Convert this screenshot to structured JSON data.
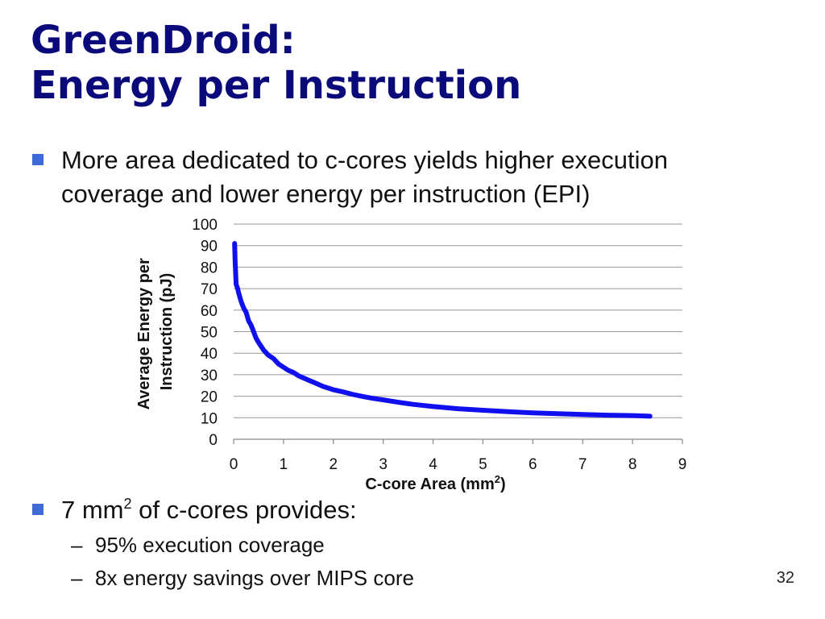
{
  "slide": {
    "title_line1": "GreenDroid:",
    "title_line2": "Energy per Instruction",
    "bullet1": "More area dedicated to c-cores yields higher execution coverage and lower energy per instruction (EPI)",
    "bullet2_prefix": "7 mm",
    "bullet2_superscript": "2",
    "bullet2_suffix": " of c-cores provides:",
    "subbullets": [
      "95% execution coverage",
      "8x energy savings over MIPS core"
    ],
    "subbullet_marker": "–",
    "page_number": "32",
    "colors": {
      "title": "#0a0a7a",
      "bullet_marker": "#3f6bd6",
      "series_line": "#1010ee",
      "gridline": "#999999"
    }
  },
  "chart_data": {
    "type": "line",
    "title": "",
    "xlabel": "C-core Area (mm",
    "xlabel_superscript": "2",
    "xlabel_suffix": ")",
    "ylabel_line1": "Average Energy per",
    "ylabel_line2": "Instruction (pJ)",
    "xlim": [
      0,
      9
    ],
    "ylim": [
      0,
      100
    ],
    "x_ticks": [
      "0",
      "1",
      "2",
      "3",
      "4",
      "5",
      "6",
      "7",
      "8",
      "9"
    ],
    "y_ticks": [
      "0",
      "10",
      "20",
      "30",
      "40",
      "50",
      "60",
      "70",
      "80",
      "90",
      "100"
    ],
    "grid": "horizontal",
    "legend": "none",
    "series": [
      {
        "x": [
          0.02,
          0.03,
          0.05,
          0.08,
          0.1,
          0.15,
          0.2,
          0.25,
          0.3,
          0.35,
          0.4,
          0.45,
          0.5,
          0.6,
          0.7,
          0.8,
          0.9,
          1.0,
          1.1,
          1.2,
          1.3,
          1.4,
          1.5,
          1.6,
          1.7,
          1.8,
          1.9,
          2.0,
          2.2,
          2.4,
          2.6,
          2.8,
          3.0,
          3.3,
          3.6,
          4.0,
          4.5,
          5.0,
          5.5,
          6.0,
          6.5,
          7.0,
          7.5,
          8.0,
          8.35
        ],
        "y": [
          91,
          82,
          72,
          70,
          68,
          64,
          61,
          59,
          55,
          53,
          50,
          47,
          45,
          41.5,
          39,
          37.5,
          35,
          33.5,
          32,
          31,
          29.5,
          28.5,
          27.5,
          26.5,
          25.5,
          24.5,
          23.8,
          23,
          22,
          20.8,
          19.8,
          19,
          18.3,
          17.2,
          16.2,
          15.2,
          14.2,
          13.5,
          12.8,
          12.3,
          11.9,
          11.5,
          11.2,
          11,
          10.7
        ]
      }
    ]
  }
}
